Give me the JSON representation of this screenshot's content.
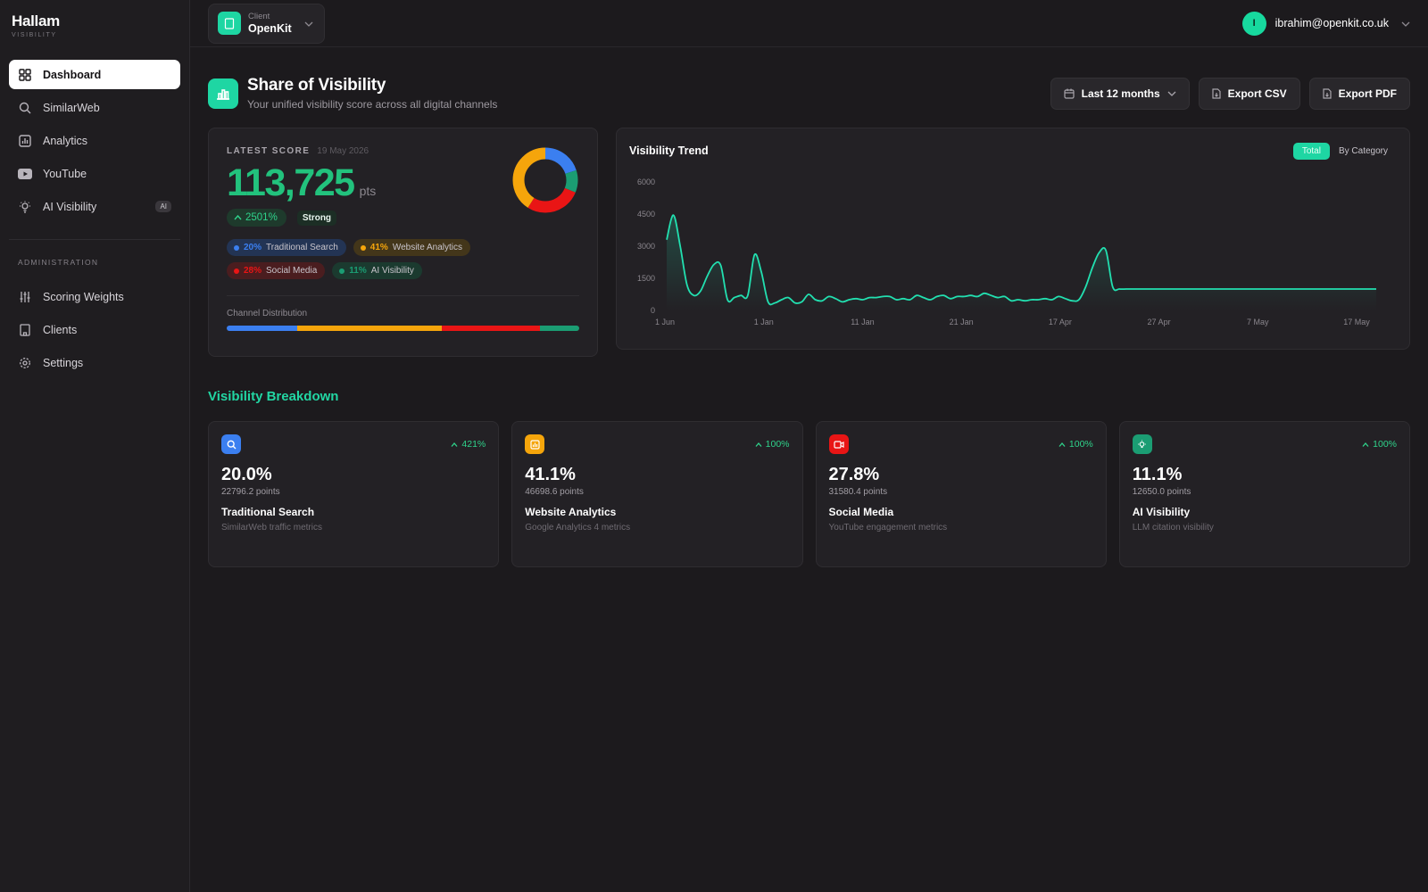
{
  "brand": {
    "name": "Hallam",
    "sub": "VISIBILITY"
  },
  "sidebar": {
    "items": [
      {
        "label": "Dashboard",
        "icon": "grid-icon",
        "active": true
      },
      {
        "label": "SimilarWeb",
        "icon": "search-icon"
      },
      {
        "label": "Analytics",
        "icon": "bar-chart-icon"
      },
      {
        "label": "YouTube",
        "icon": "youtube-icon"
      },
      {
        "label": "AI Visibility",
        "icon": "lightbulb-icon",
        "badge": "AI"
      }
    ],
    "admin_label": "ADMINISTRATION",
    "admin_items": [
      {
        "label": "Scoring Weights",
        "icon": "sliders-icon"
      },
      {
        "label": "Clients",
        "icon": "building-icon"
      },
      {
        "label": "Settings",
        "icon": "gear-icon"
      }
    ]
  },
  "topbar": {
    "client_label": "Client",
    "client_value": "OpenKit",
    "user_initial": "I",
    "user_email": "ibrahim@openkit.co.uk"
  },
  "header": {
    "title": "Share of Visibility",
    "subtitle": "Your unified visibility score across all digital channels",
    "range_label": "Last 12 months",
    "export_csv": "Export CSV",
    "export_pdf": "Export PDF"
  },
  "score": {
    "label": "LATEST SCORE",
    "date": "19 May 2026",
    "value": "113,725",
    "unit": "pts",
    "change": "2501%",
    "rating": "Strong",
    "distribution_label": "Channel Distribution",
    "channels": [
      {
        "pct": "20%",
        "name": "Traditional Search",
        "color": "#3b7ff0",
        "fraction": 0.2
      },
      {
        "pct": "41%",
        "name": "Website Analytics",
        "color": "#f5a50b",
        "fraction": 0.411
      },
      {
        "pct": "28%",
        "name": "Social Media",
        "color": "#e91515",
        "fraction": 0.278
      },
      {
        "pct": "11%",
        "name": "AI Visibility",
        "color": "#1b9d73",
        "fraction": 0.111
      }
    ]
  },
  "trend": {
    "title": "Visibility Trend",
    "tab_total": "Total",
    "tab_category": "By Category"
  },
  "chart_data": {
    "type": "line",
    "title": "Visibility Trend",
    "xlabel": "",
    "ylabel": "",
    "ylim": [
      0,
      6000
    ],
    "yticks": [
      "6000",
      "4500",
      "3000",
      "1500",
      "0"
    ],
    "xticks": [
      "1 Jun",
      "1 Jan",
      "11 Jan",
      "21 Jan",
      "17 Apr",
      "27 Apr",
      "7 May",
      "17 May"
    ],
    "grid": false,
    "color": "#22e0b0",
    "series": [
      {
        "values": [
          3300,
          4450,
          3000,
          1200,
          700,
          900,
          1600,
          2150,
          2100,
          500,
          600,
          700,
          700,
          2600,
          1800,
          400,
          350,
          500,
          600,
          350,
          400,
          750,
          500,
          450,
          650,
          550,
          400,
          500,
          550,
          500,
          600,
          600,
          650,
          650,
          500,
          550,
          500,
          700,
          600,
          500,
          650,
          700,
          550,
          650,
          650,
          700,
          650,
          800,
          700,
          600,
          650,
          450,
          500,
          450,
          500,
          500,
          550,
          500,
          650,
          550,
          450,
          500,
          1100,
          2000,
          2700,
          2800,
          1100,
          1000,
          1000,
          1000,
          1000,
          1000,
          1000,
          1000,
          1000,
          1000,
          1000,
          1000,
          1000,
          1000,
          1000,
          1000,
          1000,
          1000,
          1000,
          1000,
          1000,
          1000,
          1000,
          1000,
          1000,
          1000,
          1000,
          1000,
          1000,
          1000,
          1000,
          1000,
          1000,
          1000,
          1000,
          1000,
          1000,
          1000,
          1000,
          1000
        ]
      }
    ]
  },
  "breakdown": {
    "title": "Visibility Breakdown",
    "cards": [
      {
        "icon": "search-icon",
        "color": "#3b7ff0",
        "change": "421%",
        "pct": "20.0%",
        "points": "22796.2 points",
        "name": "Traditional Search",
        "desc": "SimilarWeb traffic metrics"
      },
      {
        "icon": "analytics-icon",
        "color": "#f5a50b",
        "change": "100%",
        "pct": "41.1%",
        "points": "46698.6 points",
        "name": "Website Analytics",
        "desc": "Google Analytics 4 metrics"
      },
      {
        "icon": "video-icon",
        "color": "#e91515",
        "change": "100%",
        "pct": "27.8%",
        "points": "31580.4 points",
        "name": "Social Media",
        "desc": "YouTube engagement metrics"
      },
      {
        "icon": "lightbulb-icon",
        "color": "#1b9d73",
        "change": "100%",
        "pct": "11.1%",
        "points": "12650.0 points",
        "name": "AI Visibility",
        "desc": "LLM citation visibility"
      }
    ]
  }
}
